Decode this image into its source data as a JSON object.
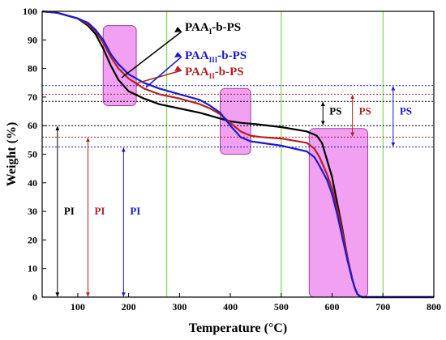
{
  "chart_data": {
    "type": "line",
    "xlabel": "Temperature (°C)",
    "ylabel": "Weight (%)",
    "xlim": [
      30,
      800
    ],
    "ylim": [
      0,
      100
    ],
    "xticks": [
      100,
      200,
      300,
      400,
      500,
      600,
      700,
      800
    ],
    "yticks": [
      0,
      10,
      20,
      30,
      40,
      50,
      60,
      70,
      80,
      90,
      100
    ],
    "grid": false,
    "reference_lines": {
      "vertical_x": [
        275,
        500,
        700
      ],
      "vertical_color": "#66cc33",
      "horizontal_y": [
        74,
        71,
        68.5,
        60,
        56,
        52.5
      ],
      "horizontal_colors": [
        "#1a1acc",
        "#b22222",
        "#000000",
        "#000000",
        "#b22222",
        "#1a1acc"
      ]
    },
    "highlight_regions": [
      {
        "x": [
          150,
          215
        ],
        "y": [
          67,
          95
        ],
        "color": "#ee82ee"
      },
      {
        "x": [
          380,
          440
        ],
        "y": [
          50,
          73
        ],
        "color": "#ee82ee"
      },
      {
        "x": [
          555,
          670
        ],
        "y": [
          0,
          59
        ],
        "color": "#ee82ee"
      }
    ],
    "series": [
      {
        "name": "PAA",
        "subscript": "I",
        "suffix": "-b-PS",
        "color": "#000000",
        "x": [
          30,
          60,
          100,
          120,
          135,
          150,
          165,
          180,
          200,
          230,
          260,
          300,
          340,
          360,
          380,
          400,
          420,
          450,
          500,
          550,
          570,
          580,
          590,
          600,
          610,
          620,
          630,
          640,
          645,
          650,
          655,
          660,
          700,
          800
        ],
        "y": [
          100,
          99.5,
          97.5,
          95,
          92,
          87,
          81,
          76,
          72,
          69.5,
          67.5,
          66,
          64.5,
          63.5,
          62.5,
          61.5,
          61,
          60.5,
          59.5,
          58,
          56.5,
          54,
          48,
          42,
          33,
          24,
          14,
          6,
          3,
          1,
          0.3,
          0,
          0,
          0
        ]
      },
      {
        "name": "PAA",
        "subscript": "II",
        "suffix": "-b-PS",
        "color": "#b22222",
        "x": [
          30,
          60,
          100,
          120,
          135,
          150,
          165,
          180,
          200,
          230,
          260,
          300,
          340,
          360,
          380,
          400,
          420,
          440,
          460,
          500,
          550,
          565,
          575,
          590,
          600,
          610,
          620,
          630,
          640,
          645,
          650,
          655,
          660,
          700,
          800
        ],
        "y": [
          100,
          99.5,
          97.5,
          95.5,
          93,
          89,
          84,
          80,
          76.5,
          73,
          71,
          69.5,
          67.5,
          66,
          64,
          61,
          58,
          56.5,
          56,
          55.5,
          54,
          52,
          49,
          43,
          38,
          31,
          23,
          14,
          6,
          3,
          1,
          0.3,
          0,
          0,
          0
        ]
      },
      {
        "name": "PAA",
        "subscript": "III",
        "suffix": "-b-PS",
        "color": "#1a1acc",
        "x": [
          30,
          60,
          100,
          120,
          135,
          150,
          165,
          180,
          200,
          230,
          260,
          300,
          340,
          360,
          380,
          400,
          420,
          440,
          460,
          500,
          550,
          565,
          575,
          590,
          600,
          610,
          620,
          630,
          640,
          645,
          650,
          655,
          660,
          700,
          800
        ],
        "y": [
          100,
          99.5,
          97.5,
          96,
          93.5,
          90,
          85,
          81.5,
          78,
          75,
          73,
          71,
          69,
          67,
          64.5,
          60,
          56,
          54.5,
          54,
          53,
          51,
          49,
          46,
          41,
          36,
          29,
          21,
          13,
          6,
          3,
          1,
          0.3,
          0,
          0,
          0
        ]
      }
    ],
    "annotations": {
      "pi": [
        {
          "label": "PI",
          "x": 60,
          "y_from": 0,
          "y_to": 60,
          "color": "#000000"
        },
        {
          "label": "PI",
          "x": 120,
          "y_from": 0,
          "y_to": 56,
          "color": "#b22222"
        },
        {
          "label": "PI",
          "x": 190,
          "y_from": 0,
          "y_to": 52.5,
          "color": "#1a1acc"
        }
      ],
      "ps": [
        {
          "label": "PS",
          "x": 582,
          "y_from": 60,
          "y_to": 68.5,
          "color": "#000000"
        },
        {
          "label": "PS",
          "x": 640,
          "y_from": 56,
          "y_to": 71,
          "color": "#b22222"
        },
        {
          "label": "PS",
          "x": 720,
          "y_from": 52.5,
          "y_to": 74,
          "color": "#1a1acc"
        }
      ]
    }
  }
}
